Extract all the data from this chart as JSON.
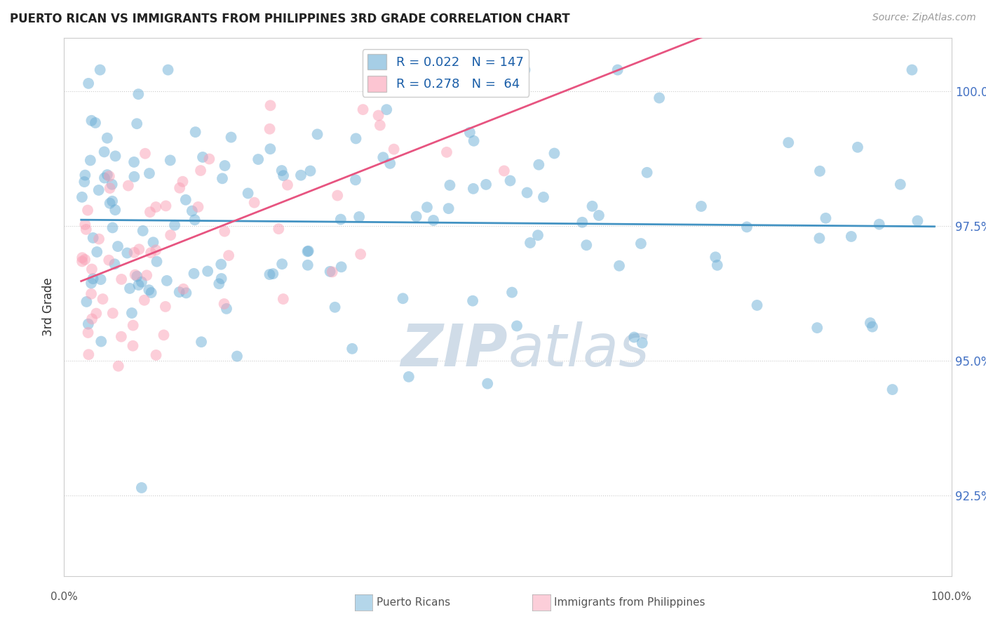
{
  "title": "PUERTO RICAN VS IMMIGRANTS FROM PHILIPPINES 3RD GRADE CORRELATION CHART",
  "source": "Source: ZipAtlas.com",
  "ylabel": "3rd Grade",
  "R_blue": 0.022,
  "N_blue": 147,
  "R_pink": 0.278,
  "N_pink": 64,
  "yticks": [
    92.5,
    95.0,
    97.5,
    100.0
  ],
  "ytick_labels": [
    "92.5%",
    "95.0%",
    "97.5%",
    "100.0%"
  ],
  "ymin": 91.0,
  "ymax": 101.0,
  "xmin": -2.0,
  "xmax": 102.0,
  "blue_color": "#6baed6",
  "pink_color": "#fa9fb5",
  "line_blue": "#4393c3",
  "line_pink": "#e75480",
  "watermark_color": "#d0dce8",
  "background": "#ffffff",
  "grid_color": "#cccccc",
  "seed": 42
}
